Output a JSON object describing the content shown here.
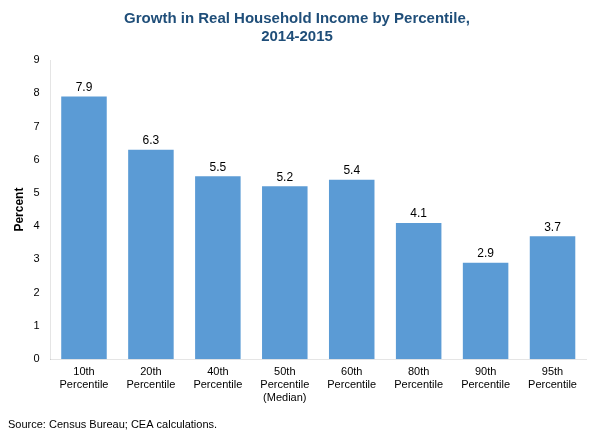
{
  "chart_data": {
    "type": "bar",
    "title": "Growth in Real Household Income by Percentile,\n2014-2015",
    "ylabel": "Percent",
    "annotation": "Source: Census Bureau; CEA calculations.",
    "categories": [
      "10th\nPercentile",
      "20th\nPercentile",
      "40th\nPercentile",
      "50th\nPercentile\n(Median)",
      "60th\nPercentile",
      "80th\nPercentile",
      "90th\nPercentile",
      "95th\nPercentile"
    ],
    "values": [
      7.9,
      6.3,
      5.5,
      5.2,
      5.4,
      4.1,
      2.9,
      3.7
    ],
    "color": "#5b9bd5",
    "ylim": [
      0,
      9
    ],
    "yticks": [
      0,
      1,
      2,
      3,
      4,
      5,
      6,
      7,
      8,
      9
    ],
    "grid": false,
    "data_labels": true
  }
}
